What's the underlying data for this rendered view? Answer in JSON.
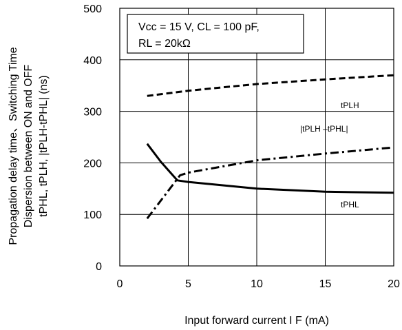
{
  "chart_data": {
    "type": "line",
    "xlim": [
      0,
      20
    ],
    "ylim": [
      0,
      500
    ],
    "x_ticks": [
      "0",
      "5",
      "10",
      "15",
      "20"
    ],
    "y_ticks": [
      "0",
      "100",
      "200",
      "300",
      "400",
      "500"
    ],
    "grid": true,
    "xlabel": "Input forward current  I F (mA)",
    "ylabel_lines": [
      "Propagation delay time、Switching Time",
      "Dispersion between ON and OFF",
      "tPHL, tPLH, |tPLH-tPHL| (ns)"
    ],
    "conditions": [
      "Vcc = 15 V, CL = 100 pF,",
      "RL = 20kΩ"
    ],
    "series": [
      {
        "name": "tPLH",
        "style": "dashed",
        "x": [
          2,
          5,
          10,
          15,
          20
        ],
        "y": [
          330,
          340,
          353,
          362,
          370
        ]
      },
      {
        "name": "|tPLH –tPHL|",
        "style": "dash-dot",
        "x": [
          2,
          4.4,
          5,
          10,
          15,
          20
        ],
        "y": [
          92,
          176,
          181,
          205,
          218,
          230
        ]
      },
      {
        "name": "tPHL",
        "style": "solid",
        "x": [
          2,
          3,
          4.2,
          5,
          10,
          15,
          20
        ],
        "y": [
          237,
          202,
          166,
          163,
          150,
          144,
          142
        ]
      }
    ]
  }
}
